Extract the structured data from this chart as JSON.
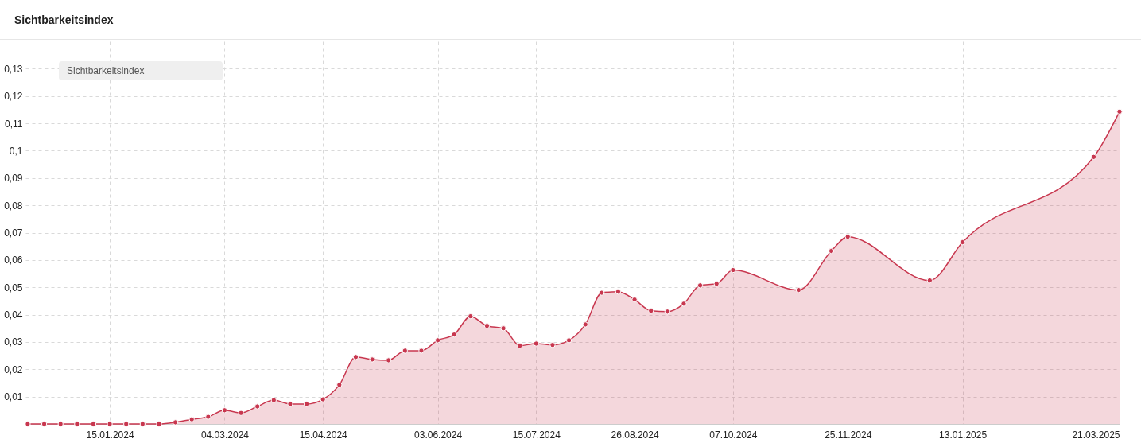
{
  "chart_data": {
    "type": "area",
    "title": "Sichtbarkeitsindex",
    "annotations": [
      "Sichtbarkeitsindex"
    ],
    "x": [
      "2023-12-11",
      "2023-12-18",
      "2023-12-25",
      "2024-01-01",
      "2024-01-08",
      "2024-01-15",
      "2024-01-22",
      "2024-01-29",
      "2024-02-05",
      "2024-02-12",
      "2024-02-19",
      "2024-02-26",
      "2024-03-04",
      "2024-03-11",
      "2024-03-18",
      "2024-03-25",
      "2024-04-01",
      "2024-04-08",
      "2024-04-15",
      "2024-04-22",
      "2024-04-29",
      "2024-05-06",
      "2024-05-13",
      "2024-05-20",
      "2024-05-27",
      "2024-06-03",
      "2024-06-10",
      "2024-06-17",
      "2024-06-24",
      "2024-07-01",
      "2024-07-08",
      "2024-07-15",
      "2024-07-22",
      "2024-07-29",
      "2024-08-05",
      "2024-08-12",
      "2024-08-19",
      "2024-08-26",
      "2024-09-02",
      "2024-09-09",
      "2024-09-16",
      "2024-09-23",
      "2024-09-30",
      "2024-10-07",
      "2024-11-04",
      "2024-11-18",
      "2024-11-25",
      "2024-12-30",
      "2025-01-13",
      "2025-03-10",
      "2025-03-21"
    ],
    "series": [
      {
        "color": "#c8374f",
        "values": [
          0,
          0,
          0,
          0,
          0,
          0,
          0,
          0,
          0,
          0.0006,
          0.0017,
          0.0026,
          0.005,
          0.004,
          0.0064,
          0.0087,
          0.0073,
          0.0073,
          0.009,
          0.0143,
          0.0245,
          0.0236,
          0.0233,
          0.0268,
          0.0268,
          0.0306,
          0.0327,
          0.0394,
          0.0359,
          0.035,
          0.0286,
          0.0294,
          0.0289,
          0.0306,
          0.0364,
          0.048,
          0.0484,
          0.0455,
          0.0414,
          0.0411,
          0.044,
          0.0507,
          0.0513,
          0.0563,
          0.049,
          0.0633,
          0.0685,
          0.0525,
          0.0665,
          0.0977,
          0.1143
        ]
      }
    ],
    "xlim": [
      "2023-12-10",
      "2025-03-21"
    ],
    "xticks": [
      {
        "value": "2024-01-15",
        "label": "15.01.2024"
      },
      {
        "value": "2024-03-04",
        "label": "04.03.2024"
      },
      {
        "value": "2024-04-15",
        "label": "15.04.2024"
      },
      {
        "value": "2024-06-03",
        "label": "03.06.2024"
      },
      {
        "value": "2024-07-15",
        "label": "15.07.2024"
      },
      {
        "value": "2024-08-26",
        "label": "26.08.2024"
      },
      {
        "value": "2024-10-07",
        "label": "07.10.2024"
      },
      {
        "value": "2024-11-25",
        "label": "25.11.2024"
      },
      {
        "value": "2025-01-13",
        "label": "13.01.2025"
      },
      {
        "value": "2025-03-21",
        "label": "21.03.2025"
      }
    ],
    "ylim": [
      0,
      0.14
    ],
    "yticks": [
      {
        "value": 0.01,
        "label": "0,01"
      },
      {
        "value": 0.02,
        "label": "0,02"
      },
      {
        "value": 0.03,
        "label": "0,03"
      },
      {
        "value": 0.04,
        "label": "0,04"
      },
      {
        "value": 0.05,
        "label": "0,05"
      },
      {
        "value": 0.06,
        "label": "0,06"
      },
      {
        "value": 0.07,
        "label": "0,07"
      },
      {
        "value": 0.08,
        "label": "0,08"
      },
      {
        "value": 0.09,
        "label": "0,09"
      },
      {
        "value": 0.1,
        "label": "0,1"
      },
      {
        "value": 0.11,
        "label": "0,11"
      },
      {
        "value": 0.12,
        "label": "0,12"
      },
      {
        "value": 0.13,
        "label": "0,13"
      }
    ],
    "grid": true,
    "marker": "circle",
    "line_style": "solid",
    "legend": false
  }
}
